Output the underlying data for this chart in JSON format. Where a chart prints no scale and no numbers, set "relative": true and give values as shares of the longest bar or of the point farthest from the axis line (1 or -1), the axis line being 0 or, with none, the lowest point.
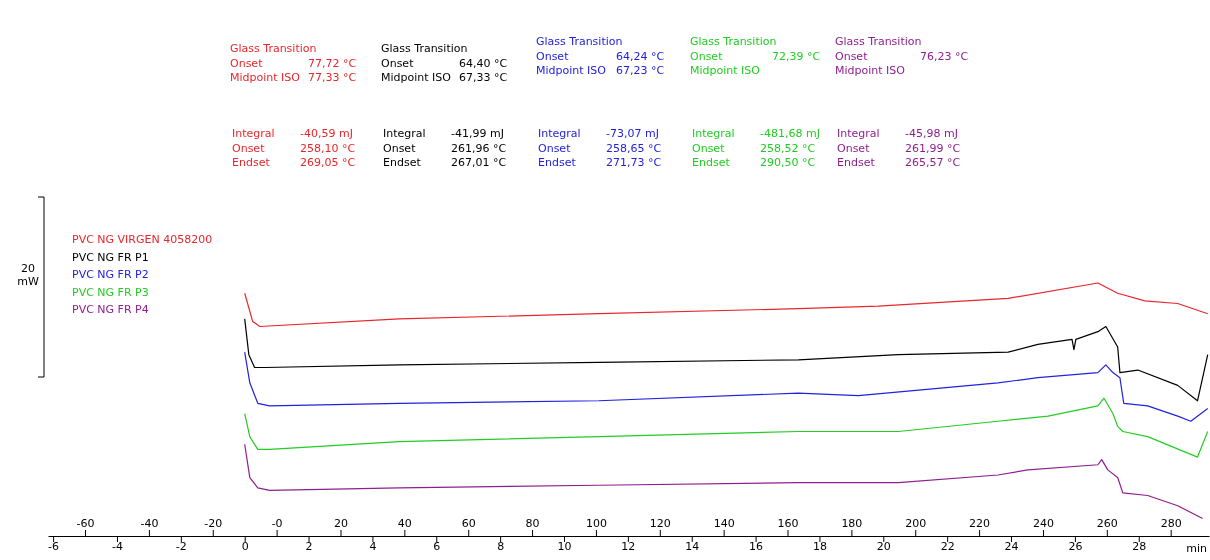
{
  "chart_data": {
    "type": "line",
    "relative": true,
    "ylabel": "20 mW",
    "xlabel": "min",
    "legend": "top left",
    "marker": "none",
    "line_style": "solid",
    "grid": false,
    "xlim": [
      -6.16,
      30.2
    ],
    "xticks": [
      -6,
      -4,
      -2,
      0,
      2,
      4,
      6,
      8,
      10,
      12,
      14,
      16,
      18,
      20,
      22,
      24,
      26,
      28
    ],
    "x2lim": [
      -71.6,
      292
    ],
    "x2ticks": [
      -60,
      -40,
      -20,
      {
        "value": 0,
        "label": "-0"
      },
      20,
      40,
      60,
      80,
      100,
      120,
      140,
      160,
      180,
      200,
      220,
      240,
      260,
      280
    ],
    "series": [
      {
        "name": "PVC NG VIRGEN 4058200",
        "color": "#e8262b",
        "x": [
          0,
          0.25,
          0.47,
          4.84,
          11.09,
          17.34,
          19.84,
          23.91,
          26.72,
          27.34,
          28.19,
          29.22,
          30.16
        ],
        "values": [
          0.96,
          0.85,
          0.83,
          0.86,
          0.88,
          0.9,
          0.91,
          0.94,
          1.0,
          0.96,
          0.93,
          0.92,
          0.88
        ]
      },
      {
        "name": "PVC NG FR P1",
        "color": "#000000",
        "x": [
          0,
          0.13,
          0.31,
          0.63,
          4.84,
          11.09,
          17.34,
          20.47,
          23.91,
          24.84,
          25.91,
          25.97,
          26.03,
          26.72,
          26.97,
          27.34,
          27.41,
          27.97,
          29.22,
          29.84,
          30.16
        ],
        "values": [
          0.86,
          0.72,
          0.67,
          0.67,
          0.68,
          0.69,
          0.7,
          0.72,
          0.73,
          0.76,
          0.78,
          0.74,
          0.78,
          0.81,
          0.83,
          0.75,
          0.65,
          0.66,
          0.6,
          0.54,
          0.72
        ]
      },
      {
        "name": "PVC NG FR P2",
        "color": "#2222dd",
        "x": [
          0,
          0.16,
          0.41,
          0.78,
          4.84,
          11.09,
          17.34,
          19.22,
          23.59,
          24.84,
          26.72,
          26.97,
          27.19,
          27.41,
          27.53,
          28.28,
          29.22,
          29.63,
          30.16
        ],
        "values": [
          0.73,
          0.61,
          0.53,
          0.52,
          0.53,
          0.54,
          0.57,
          0.56,
          0.61,
          0.63,
          0.65,
          0.68,
          0.65,
          0.63,
          0.53,
          0.52,
          0.48,
          0.46,
          0.51
        ]
      },
      {
        "name": "PVC NG FR P3",
        "color": "#22cc22",
        "x": [
          0,
          0.16,
          0.41,
          0.78,
          4.84,
          11.09,
          17.34,
          20.47,
          23.59,
          25.16,
          26.72,
          26.91,
          27.19,
          27.34,
          27.5,
          28.28,
          29.84,
          30.16
        ],
        "values": [
          0.49,
          0.4,
          0.35,
          0.35,
          0.38,
          0.4,
          0.42,
          0.42,
          0.46,
          0.48,
          0.52,
          0.55,
          0.49,
          0.44,
          0.42,
          0.4,
          0.32,
          0.42
        ]
      },
      {
        "name": "PVC NG FR P4",
        "color": "#8e1f8e",
        "x": [
          0,
          0.16,
          0.41,
          0.78,
          4.84,
          11.09,
          17.34,
          20.47,
          23.59,
          24.53,
          26.72,
          26.84,
          27.03,
          27.34,
          27.5,
          28.28,
          29.22,
          30.0
        ],
        "values": [
          0.37,
          0.24,
          0.2,
          0.19,
          0.2,
          0.21,
          0.22,
          0.22,
          0.25,
          0.27,
          0.29,
          0.31,
          0.27,
          0.24,
          0.18,
          0.17,
          0.13,
          0.08
        ]
      }
    ],
    "annotations": [
      "Glass Transition\nOnset\t77,72 °C\nMidpoint ISO\t77,33 °C",
      "Glass Transition\nOnset\t64,40 °C\nMidpoint ISO\t67,33 °C",
      "Glass Transition\nOnset\t64,24 °C\nMidpoint ISO\t67,23 °C",
      "Glass Transition\nOnset\t72,39 °C\nMidpoint ISO",
      "Glass Transition\nOnset\t76,23 °C\nMidpoint ISO",
      "Integral\t-40,59 mJ\nOnset\t258,10 °C\nEndset\t269,05 °C",
      "Integral\t-41,99 mJ\nOnset\t261,96 °C\nEndset\t267,01 °C",
      "Integral\t-73,07 mJ\nOnset\t258,65 °C\nEndset\t271,73 °C",
      "Integral\t-481,68 mJ\nOnset\t258,52 °C\nEndset\t290,50 °C",
      "Integral\t-45,98 mJ\nOnset\t261,99 °C\nEndset\t265,57 °C"
    ]
  }
}
